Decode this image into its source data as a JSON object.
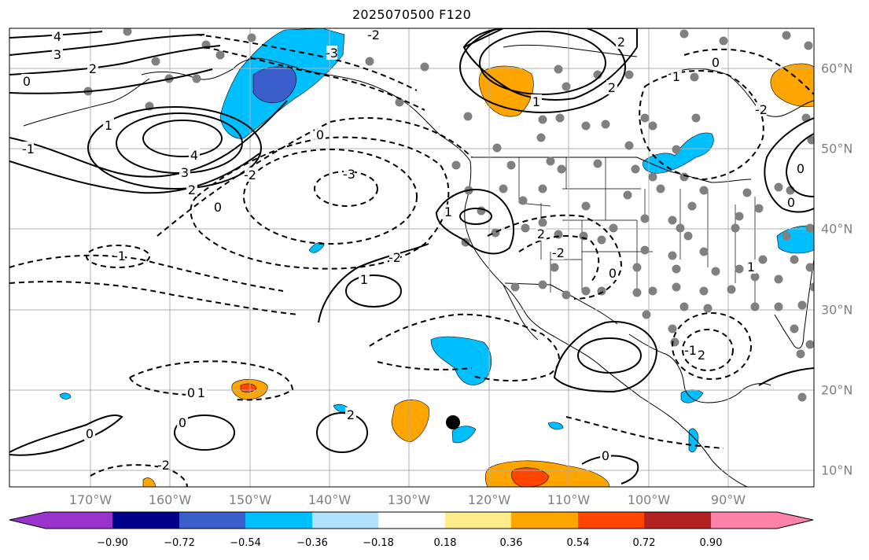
{
  "title": "2025070500 F120",
  "map": {
    "projection": "plate-carree",
    "extent_lon": [
      -180,
      -79
    ],
    "extent_lat": [
      8,
      65
    ],
    "longitude_labels": [
      "170°W",
      "160°W",
      "150°W",
      "140°W",
      "130°W",
      "120°W",
      "110°W",
      "100°W",
      "90°W"
    ],
    "latitude_labels": [
      "60°N",
      "50°N",
      "40°N",
      "30°N",
      "20°N",
      "10°N"
    ],
    "grid": true,
    "gridline_color": "#b0b0b0",
    "contour_labels": [
      "4",
      "3",
      "2",
      "0",
      "1",
      "-1",
      "-2",
      "-3",
      "4",
      "3",
      "2",
      "0",
      "-1",
      "-2",
      "-3",
      "0",
      "2",
      "-2",
      "0",
      "1",
      "1",
      "2",
      "-2",
      "0",
      "1",
      "-2",
      "2",
      "0",
      "0",
      "0",
      "0",
      "1",
      "1",
      "0",
      "2",
      "-2",
      "0",
      "1",
      "-1",
      "2"
    ],
    "marker": {
      "shape": "dot",
      "color": "#000000"
    }
  },
  "colorbar": {
    "tick_labels": [
      "−0.90",
      "−0.72",
      "−0.54",
      "−0.36",
      "−0.18",
      "0.18",
      "0.36",
      "0.54",
      "0.72",
      "0.90"
    ],
    "colors": [
      "#9a32cd",
      "#00008b",
      "#3a5fcd",
      "#00bfff",
      "#b0e2ff",
      "#ffffff",
      "#ffec8b",
      "#ffa500",
      "#ff4500",
      "#b22222",
      "#ff82ab"
    ]
  },
  "colors": {
    "coast": "#000000",
    "contour": "#000000",
    "station_dot": "#808080",
    "axis_label": "#808080"
  }
}
